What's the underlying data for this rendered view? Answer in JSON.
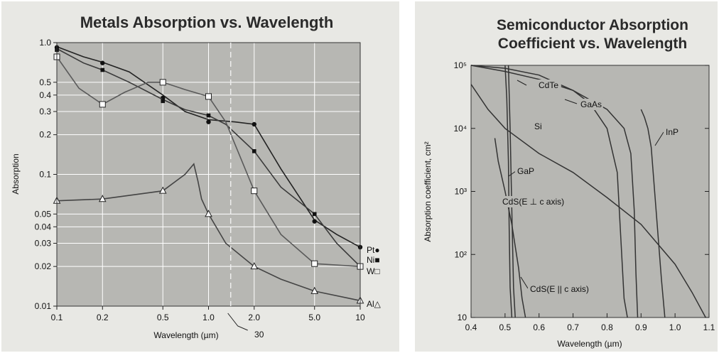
{
  "chart_data": [
    {
      "type": "line",
      "title": "Metals Absorption vs. Wavelength",
      "xlabel": "Wavelength (µm)",
      "ylabel": "Absorption",
      "x_scale": "log",
      "y_scale": "log",
      "xlim": [
        0.1,
        10
      ],
      "ylim": [
        0.01,
        1.0
      ],
      "x_ticks": [
        {
          "value": 0.1,
          "label": "0.1"
        },
        {
          "value": 0.2,
          "label": "0.2"
        },
        {
          "value": 0.5,
          "label": "0.5"
        },
        {
          "value": 1.0,
          "label": "1.0"
        },
        {
          "value": 2.0,
          "label": "2.0"
        },
        {
          "value": 5.0,
          "label": "5.0"
        },
        {
          "value": 10,
          "label": "10"
        }
      ],
      "y_ticks": [
        {
          "value": 1.0,
          "label": "1.0"
        },
        {
          "value": 0.5,
          "label": "0.5"
        },
        {
          "value": 0.4,
          "label": "0.4"
        },
        {
          "value": 0.3,
          "label": "0.3"
        },
        {
          "value": 0.2,
          "label": "0.2"
        },
        {
          "value": 0.1,
          "label": "0.1"
        },
        {
          "value": 0.05,
          "label": "0.05"
        },
        {
          "value": 0.04,
          "label": "0.04"
        },
        {
          "value": 0.03,
          "label": "0.03"
        },
        {
          "value": 0.02,
          "label": "0.02"
        },
        {
          "value": 0.01,
          "label": "0.01"
        }
      ],
      "axis_break": {
        "x": 1.4,
        "label": "30"
      },
      "grid": true,
      "series": [
        {
          "name": "Pt",
          "marker": "filled-circle",
          "x": [
            0.1,
            0.2,
            0.5,
            1.0,
            2.0,
            5.0,
            10
          ],
          "y": [
            0.92,
            0.7,
            0.38,
            0.25,
            0.24,
            0.044,
            0.028
          ],
          "curve_x": [
            0.1,
            0.15,
            0.2,
            0.3,
            0.5,
            0.7,
            1.0,
            1.5,
            2.0,
            3.0,
            5.0,
            7.0,
            10
          ],
          "curve_y": [
            0.93,
            0.78,
            0.71,
            0.6,
            0.4,
            0.3,
            0.26,
            0.25,
            0.24,
            0.11,
            0.045,
            0.035,
            0.028
          ]
        },
        {
          "name": "Ni",
          "marker": "filled-square",
          "x": [
            0.1,
            0.2,
            0.5,
            1.0,
            2.0,
            5.0,
            10
          ],
          "y": [
            0.88,
            0.62,
            0.36,
            0.28,
            0.15,
            0.05,
            0.02
          ],
          "curve_x": [
            0.1,
            0.15,
            0.2,
            0.3,
            0.5,
            0.7,
            1.0,
            1.3,
            2.0,
            3.0,
            5.0,
            7.0,
            10
          ],
          "curve_y": [
            0.9,
            0.7,
            0.62,
            0.5,
            0.37,
            0.31,
            0.28,
            0.24,
            0.15,
            0.08,
            0.05,
            0.03,
            0.02
          ]
        },
        {
          "name": "W",
          "marker": "open-square",
          "x": [
            0.1,
            0.2,
            0.5,
            1.0,
            2.0,
            5.0,
            10
          ],
          "y": [
            0.78,
            0.34,
            0.5,
            0.39,
            0.075,
            0.021,
            0.02
          ],
          "curve_x": [
            0.1,
            0.14,
            0.2,
            0.28,
            0.4,
            0.5,
            0.7,
            1.0,
            1.3,
            2.0,
            3.0,
            5.0,
            10
          ],
          "curve_y": [
            0.78,
            0.45,
            0.34,
            0.42,
            0.5,
            0.5,
            0.44,
            0.39,
            0.25,
            0.075,
            0.035,
            0.021,
            0.02
          ]
        },
        {
          "name": "Al",
          "marker": "open-triangle",
          "x": [
            0.1,
            0.2,
            0.5,
            1.0,
            2.0,
            5.0,
            10
          ],
          "y": [
            0.063,
            0.065,
            0.075,
            0.05,
            0.02,
            0.013,
            0.011
          ],
          "curve_x": [
            0.1,
            0.2,
            0.5,
            0.7,
            0.8,
            0.85,
            0.9,
            1.0,
            1.3,
            2.0,
            3.0,
            5.0,
            10
          ],
          "curve_y": [
            0.063,
            0.065,
            0.075,
            0.1,
            0.12,
            0.09,
            0.065,
            0.05,
            0.03,
            0.02,
            0.016,
            0.013,
            0.011
          ]
        }
      ]
    },
    {
      "type": "line",
      "title": "Semiconductor Absorption Coefficient vs. Wavelength",
      "title_lines": [
        "Semiconductor Absorption",
        "Coefficient vs. Wavelength"
      ],
      "xlabel": "Wavelength (µm)",
      "ylabel": "Absorption coefficient, cm²",
      "x_scale": "linear",
      "y_scale": "log",
      "xlim": [
        0.4,
        1.1
      ],
      "ylim": [
        10,
        100000
      ],
      "x_ticks": [
        {
          "value": 0.4,
          "label": "0.4"
        },
        {
          "value": 0.5,
          "label": "0.5"
        },
        {
          "value": 0.6,
          "label": "0.6"
        },
        {
          "value": 0.7,
          "label": "0.7"
        },
        {
          "value": 0.8,
          "label": "0.8"
        },
        {
          "value": 0.9,
          "label": "0.9"
        },
        {
          "value": 1.0,
          "label": "1.0"
        },
        {
          "value": 1.1,
          "label": "1.1"
        }
      ],
      "y_ticks": [
        {
          "value": 10,
          "label": "10"
        },
        {
          "value": 100,
          "label": "10²"
        },
        {
          "value": 1000,
          "label": "10³"
        },
        {
          "value": 10000,
          "label": "10⁴"
        },
        {
          "value": 100000,
          "label": "10⁵"
        }
      ],
      "grid": false,
      "series": [
        {
          "name": "CdTe",
          "x": [
            0.4,
            0.5,
            0.6,
            0.7,
            0.75,
            0.8,
            0.83,
            0.84,
            0.85,
            0.86
          ],
          "y": [
            100000,
            80000,
            60000,
            40000,
            25000,
            10000,
            2000,
            200,
            20,
            10
          ]
        },
        {
          "name": "GaAs",
          "x": [
            0.4,
            0.5,
            0.6,
            0.7,
            0.8,
            0.85,
            0.87,
            0.88,
            0.885,
            0.89
          ],
          "y": [
            100000,
            90000,
            70000,
            40000,
            20000,
            10000,
            4000,
            500,
            50,
            10
          ]
        },
        {
          "name": "Si",
          "x": [
            0.4,
            0.45,
            0.5,
            0.6,
            0.7,
            0.8,
            0.9,
            1.0,
            1.05,
            1.09
          ],
          "y": [
            50000,
            20000,
            10000,
            4000,
            2000,
            800,
            300,
            70,
            25,
            10
          ]
        },
        {
          "name": "InP",
          "x": [
            0.9,
            0.91,
            0.92,
            0.93,
            0.94,
            0.95,
            0.96,
            0.97
          ],
          "y": [
            20000,
            15000,
            10000,
            5000,
            1000,
            200,
            40,
            10
          ]
        },
        {
          "name": "GaP",
          "x": [
            0.47,
            0.48,
            0.5,
            0.52,
            0.54,
            0.55,
            0.56
          ],
          "y": [
            7000,
            3000,
            1000,
            300,
            60,
            20,
            10
          ]
        },
        {
          "name": "CdS(E ⊥ c axis)",
          "x": [
            0.5,
            0.505,
            0.51,
            0.512,
            0.515,
            0.52
          ],
          "y": [
            100000,
            30000,
            3000,
            300,
            30,
            10
          ]
        },
        {
          "name": "CdS(E || c axis)",
          "x": [
            0.51,
            0.515,
            0.52,
            0.525,
            0.53
          ],
          "y": [
            100000,
            10000,
            500,
            30,
            10
          ]
        }
      ],
      "annotations": [
        "CdTe",
        "GaAs",
        "Si",
        "InP",
        "GaP",
        "CdS(E ⊥ c axis)",
        "CdS(E || c axis)"
      ]
    }
  ]
}
